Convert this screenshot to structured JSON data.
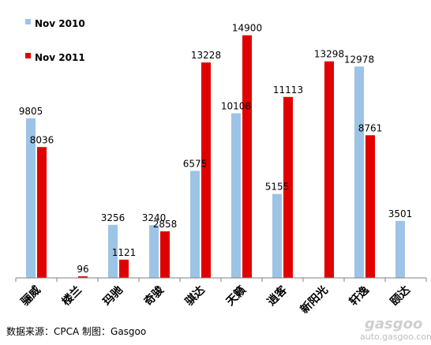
{
  "chart_data": {
    "type": "bar",
    "categories": [
      "骊威",
      "楼兰",
      "玛驰",
      "奇骏",
      "骐达",
      "天籁",
      "逍客",
      "新阳光",
      "轩逸",
      "颐达"
    ],
    "series": [
      {
        "name": "Nov 2010",
        "color": "#9DC3E6",
        "values": [
          9805,
          null,
          3256,
          3240,
          6575,
          10108,
          5155,
          null,
          12978,
          3501
        ]
      },
      {
        "name": "Nov 2011",
        "color": "#E00000",
        "values": [
          8036,
          96,
          1121,
          2858,
          13228,
          14900,
          11113,
          13298,
          8761,
          null
        ]
      }
    ],
    "ylim": [
      0,
      16000
    ],
    "legend_position": "top-left",
    "grid": false
  },
  "source_text": "数据来源：CPCA  制图：Gasgoo",
  "watermark": {
    "logo": "gasgoo",
    "url": "auto.gasgoo.com"
  }
}
